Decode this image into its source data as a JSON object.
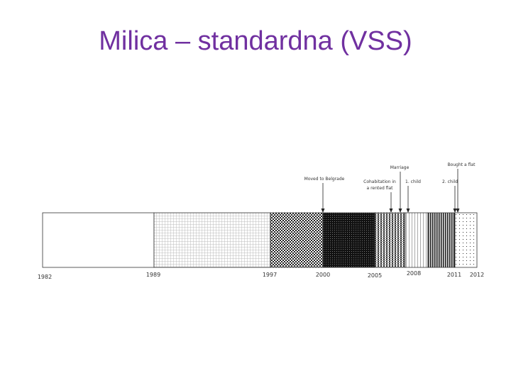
{
  "title": "Milica – standardna (VSS)",
  "timeline": {
    "years": [
      "1982",
      "1989",
      "1997",
      "2000",
      "2005",
      "2008",
      "2011",
      "2012"
    ],
    "events": [
      {
        "lines": [
          "Moved to Belgrade"
        ]
      },
      {
        "lines": [
          "Cohabitation in",
          "a rented flat"
        ]
      },
      {
        "lines": [
          "Marriage"
        ]
      },
      {
        "lines": [
          "1. child"
        ]
      },
      {
        "lines": [
          "Bought a flat"
        ]
      },
      {
        "lines": [
          "2. child"
        ]
      }
    ]
  }
}
